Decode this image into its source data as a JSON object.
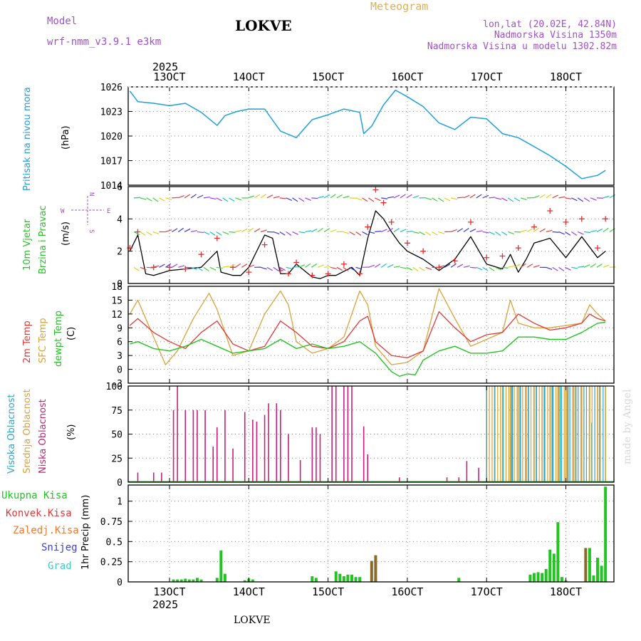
{
  "header": {
    "model_label": "Model",
    "model_name": "wrf-nmm_v3.9.1 e3km",
    "station_title": "LOKVE",
    "meteogram_label": "Meteogram",
    "lonlat": "lon,lat (20.02E, 42.84N)",
    "elevation": "Nadmorska Visina 1350m",
    "model_elevation": "Nadmorska Visina u modelu 1302.82m",
    "year_label": "2025",
    "footer_station": "LOKVE",
    "watermark": "made by Angel"
  },
  "colors": {
    "pressure": "#1ea0dc",
    "wind_line": "#000000",
    "gust_marker": "#e03030",
    "temp2m": "#e03838",
    "sfc_temp": "#d9a23a",
    "dewpoint": "#22c422",
    "high_cloud": "#2aa8c8",
    "mid_cloud": "#d9a23a",
    "low_cloud": "#c8207a",
    "total_precip": "#22c422",
    "conv_precip": "#e03838",
    "frozen_precip": "#f07830",
    "snow": "#4040d0",
    "hail": "#40c8c8"
  },
  "chart_data": [
    {
      "type": "line",
      "panel": "pressure",
      "label_line1": "Pritisak na nivou mora",
      "unit": "(hPa)",
      "x_ticks": [
        "13OCT",
        "14OCT",
        "15OCT",
        "16OCT",
        "17OCT",
        "18OCT"
      ],
      "ylim": [
        1014,
        1026
      ],
      "y_ticks": [
        "1014",
        "1017",
        "1020",
        "1023",
        "1026"
      ],
      "series": [
        {
          "name": "MSLP",
          "x": [
            12.5,
            12.6,
            12.8,
            13.0,
            13.2,
            13.4,
            13.6,
            13.7,
            13.85,
            14.0,
            14.2,
            14.4,
            14.6,
            14.8,
            15.0,
            15.2,
            15.4,
            15.45,
            15.55,
            15.7,
            15.85,
            16.0,
            16.2,
            16.4,
            16.6,
            16.8,
            17.0,
            17.2,
            17.4,
            17.6,
            17.8,
            18.0,
            18.2,
            18.4,
            18.5
          ],
          "values": [
            1025.5,
            1024.2,
            1024.0,
            1023.7,
            1024.0,
            1022.9,
            1021.3,
            1022.5,
            1023.0,
            1023.3,
            1023.3,
            1020.6,
            1019.8,
            1022.0,
            1022.6,
            1023.3,
            1022.9,
            1020.3,
            1021.2,
            1023.8,
            1025.6,
            1024.8,
            1023.6,
            1021.6,
            1020.8,
            1022.3,
            1022.1,
            1020.3,
            1019.8,
            1018.7,
            1017.6,
            1016.3,
            1014.8,
            1015.2,
            1015.8
          ]
        }
      ]
    },
    {
      "type": "line",
      "panel": "wind",
      "label_line1": "10m Vjetar",
      "label_line2": "Brzina i Pravac",
      "unit": "(m/s)",
      "compass": {
        "north": "N",
        "south": "S",
        "west": "W",
        "east": "E"
      },
      "ylim": [
        0,
        6
      ],
      "y_ticks": [
        "0",
        "2",
        "4",
        "6"
      ],
      "series": [
        {
          "name": "Wind speed",
          "x": [
            12.5,
            12.6,
            12.7,
            12.8,
            13.0,
            13.2,
            13.4,
            13.6,
            13.65,
            13.8,
            13.9,
            14.0,
            14.2,
            14.3,
            14.4,
            14.5,
            14.6,
            14.8,
            14.9,
            15.0,
            15.1,
            15.3,
            15.4,
            15.5,
            15.6,
            15.7,
            15.8,
            15.9,
            16.0,
            16.2,
            16.4,
            16.6,
            16.8,
            17.0,
            17.2,
            17.3,
            17.4,
            17.5,
            17.6,
            17.8,
            18.0,
            18.2,
            18.4,
            18.5
          ],
          "values": [
            2.0,
            3.0,
            0.6,
            0.5,
            0.8,
            0.9,
            1.0,
            2.0,
            0.7,
            0.5,
            0.5,
            1.0,
            3.0,
            2.8,
            0.6,
            0.6,
            1.2,
            0.4,
            0.3,
            0.5,
            0.5,
            1.0,
            0.5,
            2.8,
            4.5,
            4.0,
            3.2,
            2.5,
            2.0,
            1.5,
            0.8,
            1.5,
            2.9,
            1.2,
            0.9,
            1.8,
            0.7,
            1.5,
            2.5,
            2.8,
            1.6,
            2.9,
            1.6,
            2.0
          ]
        },
        {
          "name": "Gusts",
          "x": [
            12.5,
            12.6,
            12.8,
            13.0,
            13.2,
            13.4,
            13.6,
            13.8,
            14.0,
            14.2,
            14.4,
            14.5,
            14.6,
            14.8,
            15.0,
            15.2,
            15.4,
            15.5,
            15.6,
            15.7,
            15.8,
            16.0,
            16.2,
            16.4,
            16.6,
            16.8,
            17.0,
            17.2,
            17.4,
            17.6,
            17.8,
            18.0,
            18.2,
            18.4,
            18.5
          ],
          "values": [
            2.2,
            3.2,
            1.0,
            1.0,
            0.9,
            1.8,
            2.8,
            1.0,
            0.7,
            2.4,
            0.8,
            0.6,
            1.3,
            0.5,
            0.6,
            1.2,
            0.6,
            3.5,
            5.8,
            5.0,
            3.8,
            2.5,
            2.0,
            1.0,
            1.4,
            3.8,
            1.6,
            1.7,
            2.2,
            3.5,
            4.5,
            3.8,
            4.0,
            2.2,
            4.0
          ]
        }
      ]
    },
    {
      "type": "line",
      "panel": "temperature",
      "label_line1": "2m Temp",
      "label_line2": "SFC Temp",
      "label_line3": "dewpt Temp",
      "unit": "(C)",
      "ylim": [
        -3,
        18
      ],
      "y_ticks": [
        "-3",
        "0",
        "3",
        "6",
        "9",
        "12",
        "15",
        "18"
      ],
      "series": [
        {
          "name": "2m Temp",
          "x": [
            12.5,
            12.6,
            12.8,
            13.0,
            13.2,
            13.4,
            13.6,
            13.8,
            14.0,
            14.2,
            14.4,
            14.6,
            14.8,
            15.0,
            15.2,
            15.4,
            15.5,
            15.6,
            15.8,
            16.0,
            16.2,
            16.4,
            16.6,
            16.8,
            17.0,
            17.2,
            17.4,
            17.6,
            17.8,
            18.0,
            18.2,
            18.3,
            18.4,
            18.5
          ],
          "values": [
            9.5,
            11,
            8,
            6,
            4.5,
            8,
            10.5,
            5.5,
            4,
            5,
            10.5,
            8,
            5,
            4.5,
            6,
            10.5,
            11.5,
            6,
            3,
            2.5,
            4,
            12.5,
            9,
            6,
            7.5,
            8,
            12,
            10,
            8.5,
            9,
            10,
            12,
            11,
            10.5
          ]
        },
        {
          "name": "SFC Temp",
          "x": [
            12.5,
            12.6,
            12.8,
            12.95,
            13.1,
            13.3,
            13.5,
            13.6,
            13.8,
            14.0,
            14.2,
            14.4,
            14.5,
            14.6,
            14.8,
            15.0,
            15.2,
            15.4,
            15.5,
            15.6,
            15.8,
            16.0,
            16.2,
            16.4,
            16.6,
            16.8,
            17.0,
            17.2,
            17.3,
            17.4,
            17.6,
            17.8,
            18.0,
            18.2,
            18.3,
            18.4,
            18.5
          ],
          "values": [
            12,
            15,
            7,
            1,
            4,
            11,
            16.5,
            13,
            3,
            4,
            12,
            17,
            14,
            6,
            3.5,
            4.5,
            7,
            17,
            14,
            5,
            1,
            1.5,
            4,
            17.5,
            11,
            5,
            6.5,
            8,
            15,
            10,
            9,
            9,
            9.5,
            10,
            14,
            12,
            10.5
          ]
        },
        {
          "name": "dewpt Temp",
          "x": [
            12.5,
            12.6,
            12.8,
            13.0,
            13.2,
            13.4,
            13.6,
            13.8,
            14.0,
            14.2,
            14.4,
            14.6,
            14.8,
            15.0,
            15.2,
            15.4,
            15.6,
            15.8,
            15.9,
            16.0,
            16.1,
            16.2,
            16.4,
            16.6,
            16.8,
            17.0,
            17.2,
            17.4,
            17.6,
            17.8,
            18.0,
            18.2,
            18.4,
            18.5
          ],
          "values": [
            5.5,
            6,
            4.5,
            4,
            5,
            6.5,
            5,
            3.5,
            4,
            4.5,
            6.5,
            4.5,
            5.5,
            4.5,
            5,
            6,
            3.5,
            -0.5,
            -1.5,
            -1,
            -1.2,
            2,
            4,
            5,
            3.5,
            3.5,
            4,
            7,
            7,
            6.5,
            6.5,
            8,
            10,
            10.2
          ]
        }
      ]
    },
    {
      "type": "bar",
      "panel": "cloud",
      "label_line1": "Visoka Oblacnost",
      "label_line2": "Srednja Oblacnost",
      "label_line3": "Niska Oblacnost",
      "unit": "(%)",
      "ylim": [
        0,
        100
      ],
      "y_ticks": [
        "0",
        "25",
        "50",
        "75",
        "100"
      ],
      "series": [
        {
          "name": "Niska Oblacnost",
          "x": [
            12.6,
            12.8,
            12.9,
            13.05,
            13.1,
            13.2,
            13.3,
            13.35,
            13.45,
            13.55,
            13.6,
            13.7,
            13.8,
            13.95,
            14.05,
            14.1,
            14.2,
            14.25,
            14.35,
            14.4,
            14.5,
            14.65,
            14.8,
            14.85,
            14.9,
            15.05,
            15.1,
            15.2,
            15.25,
            15.3,
            15.45,
            15.5,
            15.9,
            16.5,
            16.65,
            16.75,
            16.9,
            17.3,
            17.5
          ],
          "values": [
            10,
            10,
            10,
            75,
            100,
            75,
            75,
            75,
            75,
            37,
            57,
            75,
            35,
            73,
            65,
            63,
            70,
            82,
            82,
            75,
            50,
            23,
            57,
            57,
            50,
            100,
            100,
            100,
            100,
            100,
            58,
            29,
            5,
            5,
            5,
            22,
            15,
            48,
            25
          ]
        },
        {
          "name": "Srednja Oblacnost",
          "x": [
            17.0,
            17.1,
            17.2,
            17.3,
            17.4,
            17.5,
            17.6,
            17.7,
            17.8,
            17.9,
            18.0,
            18.1,
            18.2,
            18.3,
            18.4,
            18.5
          ],
          "values": [
            100,
            100,
            100,
            100,
            100,
            100,
            100,
            100,
            100,
            100,
            100,
            100,
            100,
            100,
            100,
            100
          ]
        },
        {
          "name": "Visoka Oblacnost",
          "x": [
            17.3,
            17.4,
            17.5,
            17.6,
            17.7,
            17.8,
            17.9,
            18.0,
            18.1,
            18.2,
            18.3,
            18.4
          ],
          "values": [
            100,
            100,
            100,
            100,
            100,
            100,
            100,
            100,
            100,
            100,
            62,
            100
          ]
        }
      ]
    },
    {
      "type": "bar",
      "panel": "precip",
      "legend": {
        "total": "Ukupna Kisa",
        "convective": "Konvek.Kisa",
        "frozen": "Zaledj.Kisa",
        "snow": "Snijeg",
        "hail": "Grad"
      },
      "unit": "1hr Precip (mm)",
      "ylim": [
        0,
        1.2
      ],
      "y_ticks": [
        "0",
        "0.25",
        "0.5",
        "0.75",
        "1"
      ],
      "x_ticks": [
        "13OCT",
        "14OCT",
        "15OCT",
        "16OCT",
        "17OCT",
        "18OCT"
      ],
      "series": [
        {
          "name": "Ukupna Kisa",
          "x": [
            13.05,
            13.1,
            13.15,
            13.2,
            13.25,
            13.3,
            13.35,
            13.4,
            13.6,
            13.65,
            13.7,
            13.95,
            14.0,
            14.05,
            14.8,
            14.85,
            15.1,
            15.15,
            15.2,
            15.25,
            15.3,
            15.35,
            15.4,
            15.6,
            16.65,
            17.55,
            17.6,
            17.65,
            17.7,
            17.75,
            17.8,
            17.85,
            17.9,
            17.95,
            18.0,
            18.3,
            18.35,
            18.4,
            18.45,
            18.5
          ],
          "values": [
            0.03,
            0.03,
            0.03,
            0.04,
            0.03,
            0.03,
            0.05,
            0.03,
            0.05,
            0.39,
            0.1,
            0.02,
            0.04,
            0.03,
            0.07,
            0.05,
            0.13,
            0.1,
            0.07,
            0.09,
            0.09,
            0.06,
            0.06,
            0.05,
            0.05,
            0.09,
            0.11,
            0.12,
            0.11,
            0.16,
            0.4,
            0.35,
            0.74,
            0.06,
            0.02,
            0.42,
            0.08,
            0.3,
            0.2,
            1.18
          ]
        },
        {
          "name": "Zaledj.Kisa",
          "x": [
            15.55,
            15.6,
            18.25
          ],
          "values": [
            0.26,
            0.33,
            0.42
          ]
        }
      ]
    }
  ]
}
